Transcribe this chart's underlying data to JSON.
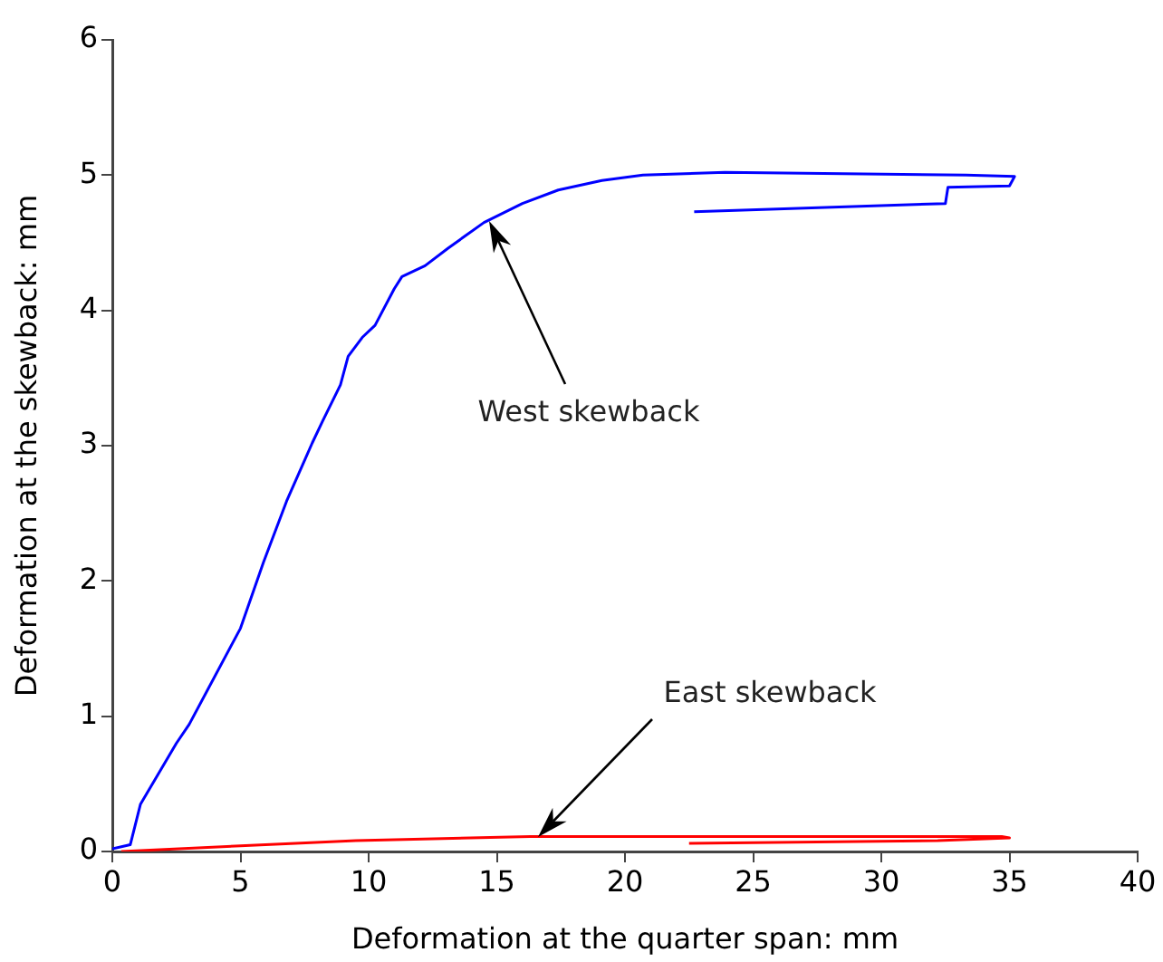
{
  "chart_data": {
    "type": "line",
    "xlabel": "Deformation at the quarter span: mm",
    "ylabel": "Deformation at the skewback: mm",
    "xlim": [
      0,
      40
    ],
    "xticks": [
      0,
      5,
      10,
      15,
      20,
      25,
      30,
      35,
      40
    ],
    "ylim": [
      0,
      6
    ],
    "yticks": [
      0,
      1,
      2,
      3,
      4,
      5,
      6
    ],
    "grid": false,
    "series": [
      {
        "color": "#0000ff",
        "x": [
          0,
          0.7,
          1.1,
          2.5,
          3.0,
          5.0,
          5.9,
          6.8,
          7.8,
          8.2,
          8.9,
          9.2,
          9.75,
          10.25,
          11.0,
          11.3,
          12.2,
          13.1,
          14.5,
          16.0,
          17.4,
          19.1,
          20.7,
          23.9,
          33.3,
          35.2,
          35.0,
          32.6,
          32.5,
          22.7
        ],
        "values": [
          0.02,
          0.05,
          0.35,
          0.8,
          0.94,
          1.65,
          2.14,
          2.59,
          3.02,
          3.18,
          3.45,
          3.66,
          3.8,
          3.89,
          4.16,
          4.25,
          4.33,
          4.46,
          4.65,
          4.79,
          4.89,
          4.96,
          5.0,
          5.02,
          5.0,
          4.99,
          4.92,
          4.91,
          4.79,
          4.73
        ]
      },
      {
        "color": "#ff0000",
        "x": [
          0.35,
          4.8,
          9.5,
          16.3,
          22.5,
          34.7,
          35.0,
          32.2,
          22.5
        ],
        "values": [
          0,
          0.04,
          0.08,
          0.11,
          0.11,
          0.11,
          0.1,
          0.08,
          0.06
        ]
      }
    ],
    "annotations": [
      "West skewback",
      "East skewback"
    ]
  }
}
